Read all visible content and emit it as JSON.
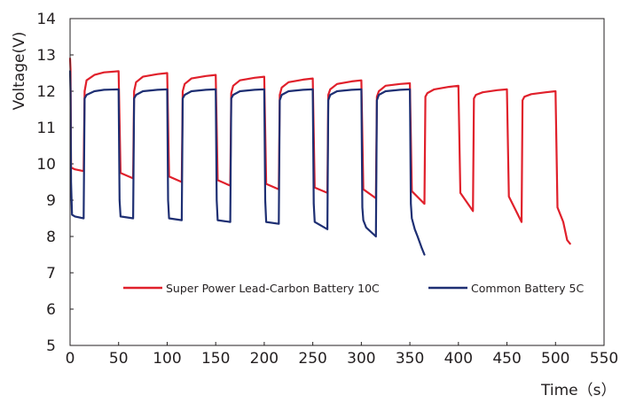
{
  "chart_data": {
    "type": "line",
    "xlabel": "Time（s）",
    "ylabel": "Voltage(V)",
    "xlim": [
      0,
      550
    ],
    "ylim": [
      5,
      14
    ],
    "x_ticks": [
      "0",
      "50",
      "100",
      "150",
      "200",
      "250",
      "300",
      "350",
      "400",
      "450",
      "500",
      "550"
    ],
    "y_ticks": [
      "5",
      "6",
      "7",
      "8",
      "9",
      "10",
      "11",
      "12",
      "13",
      "14"
    ],
    "grid": false,
    "legend_position": "bottom",
    "series": [
      {
        "name": "Super Power Lead-Carbon Battery  10C",
        "color": "#e0202b",
        "x": [
          0,
          0.5,
          1,
          5,
          14,
          15,
          17,
          25,
          35,
          50,
          52,
          65,
          66,
          68,
          75,
          90,
          100,
          102,
          115,
          116,
          118,
          125,
          140,
          150,
          152,
          165,
          166,
          168,
          175,
          190,
          200,
          202,
          215,
          216,
          218,
          225,
          240,
          250,
          252,
          265,
          266,
          268,
          275,
          290,
          300,
          302,
          315,
          316,
          318,
          325,
          340,
          350,
          352,
          365,
          366,
          368,
          375,
          390,
          400,
          402,
          415,
          416,
          418,
          425,
          440,
          450,
          452,
          465,
          466,
          468,
          475,
          490,
          500,
          502,
          508,
          512,
          515
        ],
        "y": [
          12.9,
          12.6,
          9.9,
          9.85,
          9.8,
          12.0,
          12.3,
          12.45,
          12.52,
          12.55,
          9.75,
          9.6,
          12.0,
          12.25,
          12.4,
          12.47,
          12.5,
          9.65,
          9.5,
          12.0,
          12.2,
          12.35,
          12.42,
          12.45,
          9.55,
          9.4,
          11.95,
          12.15,
          12.3,
          12.37,
          12.4,
          9.45,
          9.3,
          11.9,
          12.1,
          12.25,
          12.32,
          12.35,
          9.35,
          9.2,
          11.9,
          12.05,
          12.2,
          12.27,
          12.3,
          9.3,
          9.05,
          11.85,
          12.0,
          12.15,
          12.2,
          12.22,
          9.25,
          8.9,
          11.85,
          11.95,
          12.05,
          12.12,
          12.15,
          9.2,
          8.7,
          11.8,
          11.9,
          11.97,
          12.03,
          12.05,
          9.1,
          8.4,
          11.75,
          11.85,
          11.92,
          11.97,
          12.0,
          8.8,
          8.4,
          7.9,
          7.8
        ]
      },
      {
        "name": "Common Battery 5C",
        "color": "#1e2f73",
        "x": [
          0,
          0.5,
          1,
          2,
          5,
          14,
          15,
          17,
          25,
          35,
          50,
          51,
          52,
          65,
          66,
          68,
          75,
          90,
          100,
          101,
          102,
          115,
          116,
          118,
          125,
          140,
          150,
          151,
          152,
          165,
          166,
          168,
          175,
          190,
          200,
          201,
          202,
          215,
          216,
          218,
          225,
          240,
          250,
          251,
          252,
          265,
          266,
          268,
          275,
          290,
          300,
          301,
          302,
          305,
          315,
          316,
          318,
          325,
          340,
          350,
          351,
          352,
          355,
          358,
          362,
          365
        ],
        "y": [
          12.55,
          12.0,
          9.5,
          8.6,
          8.55,
          8.5,
          11.8,
          11.9,
          12.0,
          12.04,
          12.05,
          9.0,
          8.55,
          8.5,
          11.8,
          11.9,
          12.0,
          12.04,
          12.05,
          9.0,
          8.5,
          8.45,
          11.8,
          11.9,
          12.0,
          12.04,
          12.05,
          9.0,
          8.45,
          8.4,
          11.8,
          11.9,
          12.0,
          12.04,
          12.05,
          9.0,
          8.4,
          8.35,
          11.75,
          11.9,
          12.0,
          12.04,
          12.05,
          8.9,
          8.4,
          8.2,
          11.75,
          11.9,
          12.0,
          12.04,
          12.05,
          8.8,
          8.45,
          8.25,
          8.0,
          11.75,
          11.9,
          12.0,
          12.04,
          12.05,
          8.9,
          8.5,
          8.2,
          8.0,
          7.7,
          7.5
        ]
      }
    ]
  }
}
